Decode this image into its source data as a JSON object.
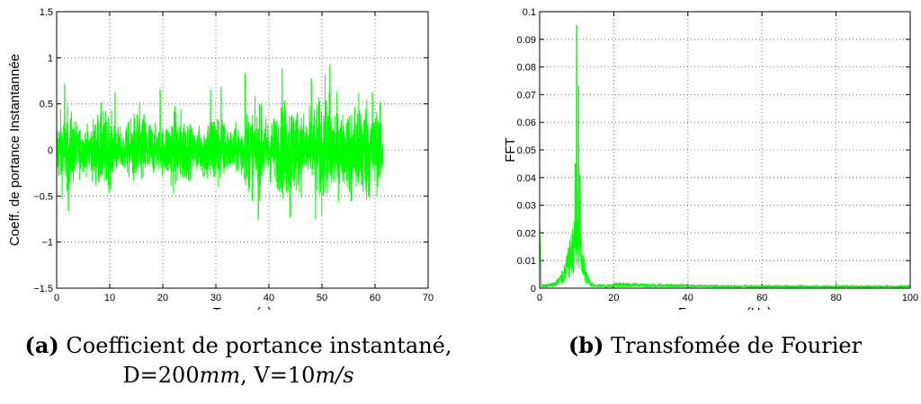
{
  "figures": [
    {
      "ylabel": "Coeff. de portance Instantannée",
      "xlabel": "Temps (s)",
      "xticks": [
        "0",
        "10",
        "20",
        "30",
        "40",
        "50",
        "60",
        "70"
      ],
      "yticks": [
        "−1.5",
        "−1",
        "−0.5",
        "0",
        "0.5",
        "1",
        "1.5"
      ],
      "caption_tag": "(a)",
      "caption_text": "Coefficient de portance instantané,",
      "caption_line2_d": "D=200",
      "caption_line2_d_unit": "mm",
      "caption_line2_sep": ", V=10",
      "caption_line2_v_unit": "m/s"
    },
    {
      "ylabel": "FFT",
      "xlabel": "Frequence (Hz)",
      "xticks": [
        "0",
        "20",
        "40",
        "60",
        "80",
        "100"
      ],
      "yticks": [
        "0",
        "0.01",
        "0.02",
        "0.03",
        "0.04",
        "0.05",
        "0.06",
        "0.07",
        "0.08",
        "0.09",
        "0.1"
      ],
      "caption_tag": "(b)",
      "caption_text": "Transfomée de Fourier"
    }
  ],
  "chart_data": [
    {
      "type": "line",
      "xlabel": "Temps (s)",
      "ylabel": "Coeff. de portance Instantannée",
      "xlim": [
        0,
        70
      ],
      "ylim": [
        -1.5,
        1.5
      ],
      "grid": true,
      "color": "#00ff00",
      "signal": {
        "x_range": [
          0,
          61.5
        ],
        "peaks": [
          {
            "x": 1.5,
            "y": 0.72
          },
          {
            "x": 2.2,
            "y": -0.66
          },
          {
            "x": 11.0,
            "y": 0.62
          },
          {
            "x": 19.5,
            "y": 0.65
          },
          {
            "x": 29.0,
            "y": 0.65
          },
          {
            "x": 31.0,
            "y": 0.68
          },
          {
            "x": 35.5,
            "y": 0.83
          },
          {
            "x": 38.0,
            "y": -0.75
          },
          {
            "x": 42.5,
            "y": 0.88
          },
          {
            "x": 44.0,
            "y": -0.73
          },
          {
            "x": 48.0,
            "y": 0.77
          },
          {
            "x": 48.8,
            "y": -0.75
          },
          {
            "x": 51.5,
            "y": 0.92
          },
          {
            "x": 55.5,
            "y": -0.55
          },
          {
            "x": 59.5,
            "y": 0.62
          }
        ]
      }
    },
    {
      "type": "line",
      "xlabel": "Frequence (Hz)",
      "ylabel": "FFT",
      "xlim": [
        0,
        100
      ],
      "ylim": [
        0,
        0.1
      ],
      "grid": true,
      "color": "#00ff00",
      "spectrum": {
        "peaks": [
          {
            "x": 0.2,
            "y": 0.02
          },
          {
            "x": 10.0,
            "y": 0.095
          },
          {
            "x": 10.5,
            "y": 0.073
          },
          {
            "x": 80.0,
            "y": 0.002
          }
        ]
      }
    }
  ]
}
